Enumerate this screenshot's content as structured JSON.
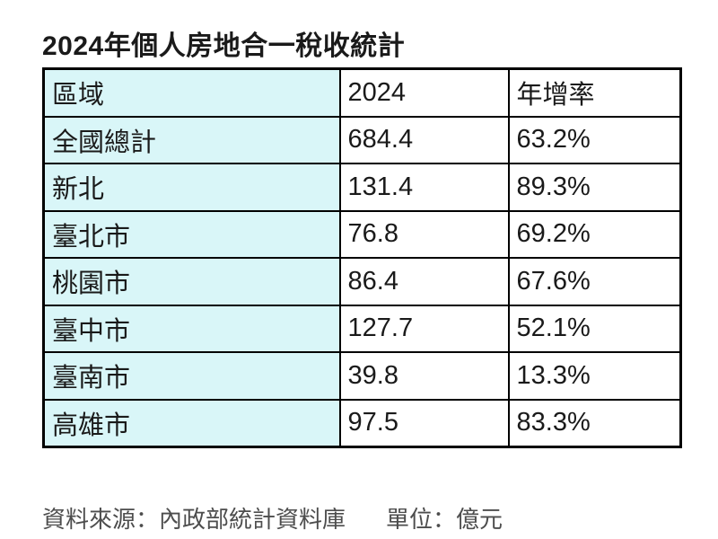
{
  "title": "2024年個人房地合一稅收統計",
  "table": {
    "headers": [
      "區域",
      "2024",
      "年增率"
    ],
    "rows": [
      [
        "全國總計",
        "684.4",
        "63.2%"
      ],
      [
        "新北",
        "131.4",
        "89.3%"
      ],
      [
        "臺北市",
        "76.8",
        "69.2%"
      ],
      [
        "桃園市",
        "86.4",
        "67.6%"
      ],
      [
        "臺中市",
        "127.7",
        "52.1%"
      ],
      [
        "臺南市",
        "39.8",
        "13.3%"
      ],
      [
        "高雄市",
        "97.5",
        "83.3%"
      ]
    ]
  },
  "footer": {
    "source": "資料來源：內政部統計資料庫",
    "unit": "單位：億元"
  },
  "colors": {
    "region_column_bg": "#d9f6f8",
    "border": "#000000",
    "text": "#1a1a1a",
    "footer_text": "#4d4d4d"
  },
  "chart_data": {
    "type": "table",
    "title": "2024年個人房地合一稅收統計",
    "columns": [
      "區域",
      "2024",
      "年增率"
    ],
    "rows": [
      {
        "region": "全國總計",
        "tax_revenue": 684.4,
        "yoy_growth_pct": 63.2
      },
      {
        "region": "新北",
        "tax_revenue": 131.4,
        "yoy_growth_pct": 89.3
      },
      {
        "region": "臺北市",
        "tax_revenue": 76.8,
        "yoy_growth_pct": 69.2
      },
      {
        "region": "桃園市",
        "tax_revenue": 86.4,
        "yoy_growth_pct": 67.6
      },
      {
        "region": "臺中市",
        "tax_revenue": 127.7,
        "yoy_growth_pct": 52.1
      },
      {
        "region": "臺南市",
        "tax_revenue": 39.8,
        "yoy_growth_pct": 13.3
      },
      {
        "region": "高雄市",
        "tax_revenue": 97.5,
        "yoy_growth_pct": 83.3
      }
    ],
    "source": "資料來源：內政部統計資料庫",
    "unit": "單位：億元"
  }
}
